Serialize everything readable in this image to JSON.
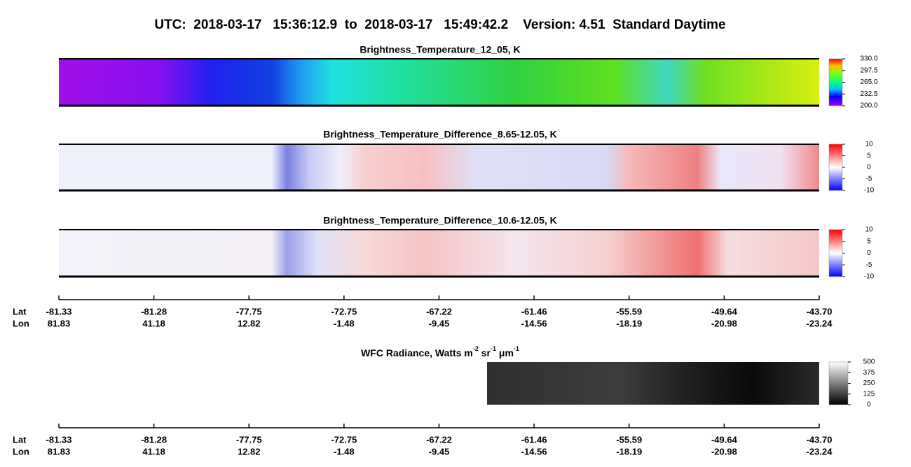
{
  "title": "UTC:  2018-03-17   15:36:12.9  to  2018-03-17   15:49:42.2    Version: 4.51  Standard Daytime",
  "panels": [
    {
      "title": "Brightness_Temperature_12_05, K",
      "colorbar_ticks": [
        {
          "value": 330,
          "label": "330.0"
        },
        {
          "value": 297.5,
          "label": "297.5"
        },
        {
          "value": 265,
          "label": "265.0"
        },
        {
          "value": 232.5,
          "label": "232.5"
        },
        {
          "value": 200,
          "label": "200.0"
        }
      ]
    },
    {
      "title": "Brightness_Temperature_Difference_8.65-12.05, K",
      "colorbar_ticks": [
        10,
        5,
        0,
        -5,
        -10
      ]
    },
    {
      "title": "Brightness_Temperature_Difference_10.6-12.05, K",
      "colorbar_ticks": [
        10,
        5,
        0,
        -5,
        -10
      ]
    },
    {
      "title_parts": [
        "WFC Radiance, Watts m",
        "-2",
        " sr",
        "-1",
        " μm",
        "-1"
      ],
      "colorbar_ticks": [
        500,
        375,
        250,
        125,
        0
      ]
    }
  ],
  "axes": [
    {
      "row_labels": [
        "Lat",
        "Lon"
      ],
      "lat": [
        "-81.33",
        "-81.28",
        "-77.75",
        "-72.75",
        "-67.22",
        "-61.46",
        "-55.59",
        "-49.64",
        "-43.70"
      ],
      "lon": [
        "81.83",
        "41.18",
        "12.82",
        "-1.48",
        "-9.45",
        "-14.56",
        "-18.19",
        "-20.98",
        "-23.24"
      ]
    },
    {
      "row_labels": [
        "Lat",
        "Lon"
      ],
      "lat": [
        "-81.33",
        "-81.28",
        "-77.75",
        "-72.75",
        "-67.22",
        "-61.46",
        "-55.59",
        "-49.64",
        "-43.70"
      ],
      "lon": [
        "81.83",
        "41.18",
        "12.82",
        "-1.48",
        "-9.45",
        "-14.56",
        "-18.19",
        "-20.98",
        "-23.24"
      ]
    }
  ]
}
